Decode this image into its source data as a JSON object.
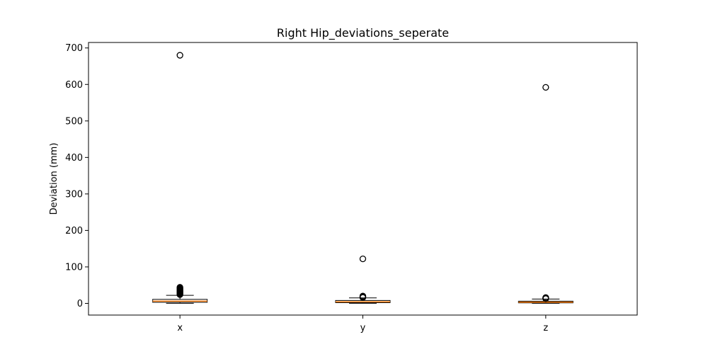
{
  "chart_data": {
    "type": "box",
    "title": "Right Hip_deviations_seperate",
    "xlabel": "",
    "ylabel": "Deviation (mm)",
    "ylim": [
      -32,
      715
    ],
    "yticks": [
      0,
      100,
      200,
      300,
      400,
      500,
      600,
      700
    ],
    "categories": [
      "x",
      "y",
      "z"
    ],
    "boxes": [
      {
        "name": "x",
        "whisker_low": 0.3,
        "q1": 3,
        "median": 6,
        "q3": 11,
        "whisker_high": 22,
        "outliers": [
          24,
          26,
          28,
          30,
          32,
          34,
          36,
          38,
          40,
          42,
          44,
          680
        ]
      },
      {
        "name": "y",
        "whisker_low": 0.3,
        "q1": 2,
        "median": 4.5,
        "q3": 8,
        "whisker_high": 15,
        "outliers": [
          16,
          17,
          18,
          19,
          20,
          122
        ]
      },
      {
        "name": "z",
        "whisker_low": 0.3,
        "q1": 1.5,
        "median": 3.5,
        "q3": 6,
        "whisker_high": 12,
        "outliers": [
          13,
          14,
          15,
          16,
          592
        ]
      }
    ],
    "colors": {
      "box_edge": "#000000",
      "box_fill": "#ffffff",
      "median": "#ff7f0e",
      "outlier_edge": "#000000"
    },
    "grid": false,
    "legend": "none"
  }
}
